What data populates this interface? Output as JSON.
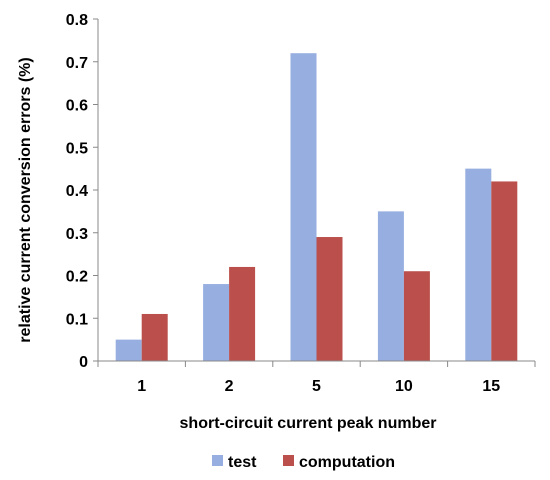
{
  "chart_data": {
    "type": "bar",
    "categories": [
      "1",
      "2",
      "5",
      "10",
      "15"
    ],
    "series": [
      {
        "name": "test",
        "values": [
          0.05,
          0.18,
          0.72,
          0.35,
          0.45
        ],
        "color": "#96aee0"
      },
      {
        "name": "computation",
        "values": [
          0.11,
          0.22,
          0.29,
          0.21,
          0.42
        ],
        "color": "#bb4f4b"
      }
    ],
    "title": "",
    "xlabel": "short-circuit current peak number",
    "ylabel": "relative current conversion errors (%)",
    "ylim": [
      0,
      0.8
    ],
    "yticks": [
      "0",
      "0.1",
      "0.2",
      "0.3",
      "0.4",
      "0.5",
      "0.6",
      "0.7",
      "0.8"
    ],
    "grid": false,
    "legend": "bottom"
  }
}
